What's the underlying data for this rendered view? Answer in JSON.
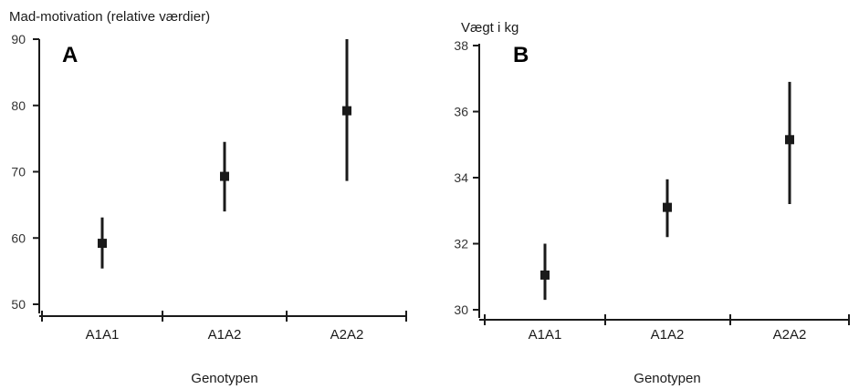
{
  "chart_data": [
    {
      "type": "scatter",
      "panel_label": "A",
      "ylabel": "Mad-motivation (relative værdier)",
      "xlabel": "Genotypen",
      "categories": [
        "A1A1",
        "A1A2",
        "A2A2"
      ],
      "yticks": [
        50,
        60,
        70,
        80,
        90
      ],
      "ylim": [
        48.5,
        90
      ],
      "series": [
        {
          "values": [
            59.2,
            69.3,
            79.2
          ],
          "error_low": [
            55.4,
            64.0,
            68.6
          ],
          "error_high": [
            63.1,
            74.5,
            90.0
          ]
        }
      ],
      "grid": false,
      "colors": {
        "marker": "#1a1a1a",
        "axis": "#1a1a1a"
      }
    },
    {
      "type": "scatter",
      "panel_label": "B",
      "ylabel": "Vægt i kg",
      "xlabel": "Genotypen",
      "categories": [
        "A1A1",
        "A1A2",
        "A2A2"
      ],
      "yticks": [
        30,
        32,
        34,
        36,
        38
      ],
      "ylim": [
        29.7,
        38
      ],
      "series": [
        {
          "values": [
            31.05,
            33.1,
            35.15
          ],
          "error_low": [
            30.3,
            32.2,
            33.2
          ],
          "error_high": [
            32.0,
            33.95,
            36.9
          ]
        }
      ],
      "grid": false,
      "colors": {
        "marker": "#1a1a1a",
        "axis": "#1a1a1a"
      }
    }
  ]
}
